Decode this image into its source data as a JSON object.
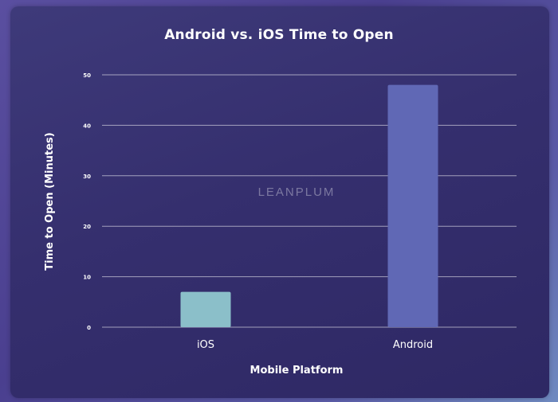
{
  "chart_data": {
    "type": "bar",
    "title": "Android vs. iOS Time to Open",
    "xlabel": "Mobile Platform",
    "ylabel": "Time to Open (Minutes)",
    "categories": [
      "iOS",
      "Android"
    ],
    "values": [
      7,
      48
    ],
    "ylim": [
      0,
      50
    ],
    "yticks": [
      0,
      10,
      20,
      30,
      40,
      50
    ],
    "grid": true,
    "colors": [
      "#8bbfc9",
      "#6068b5"
    ],
    "watermark": "LEANPLUM"
  }
}
